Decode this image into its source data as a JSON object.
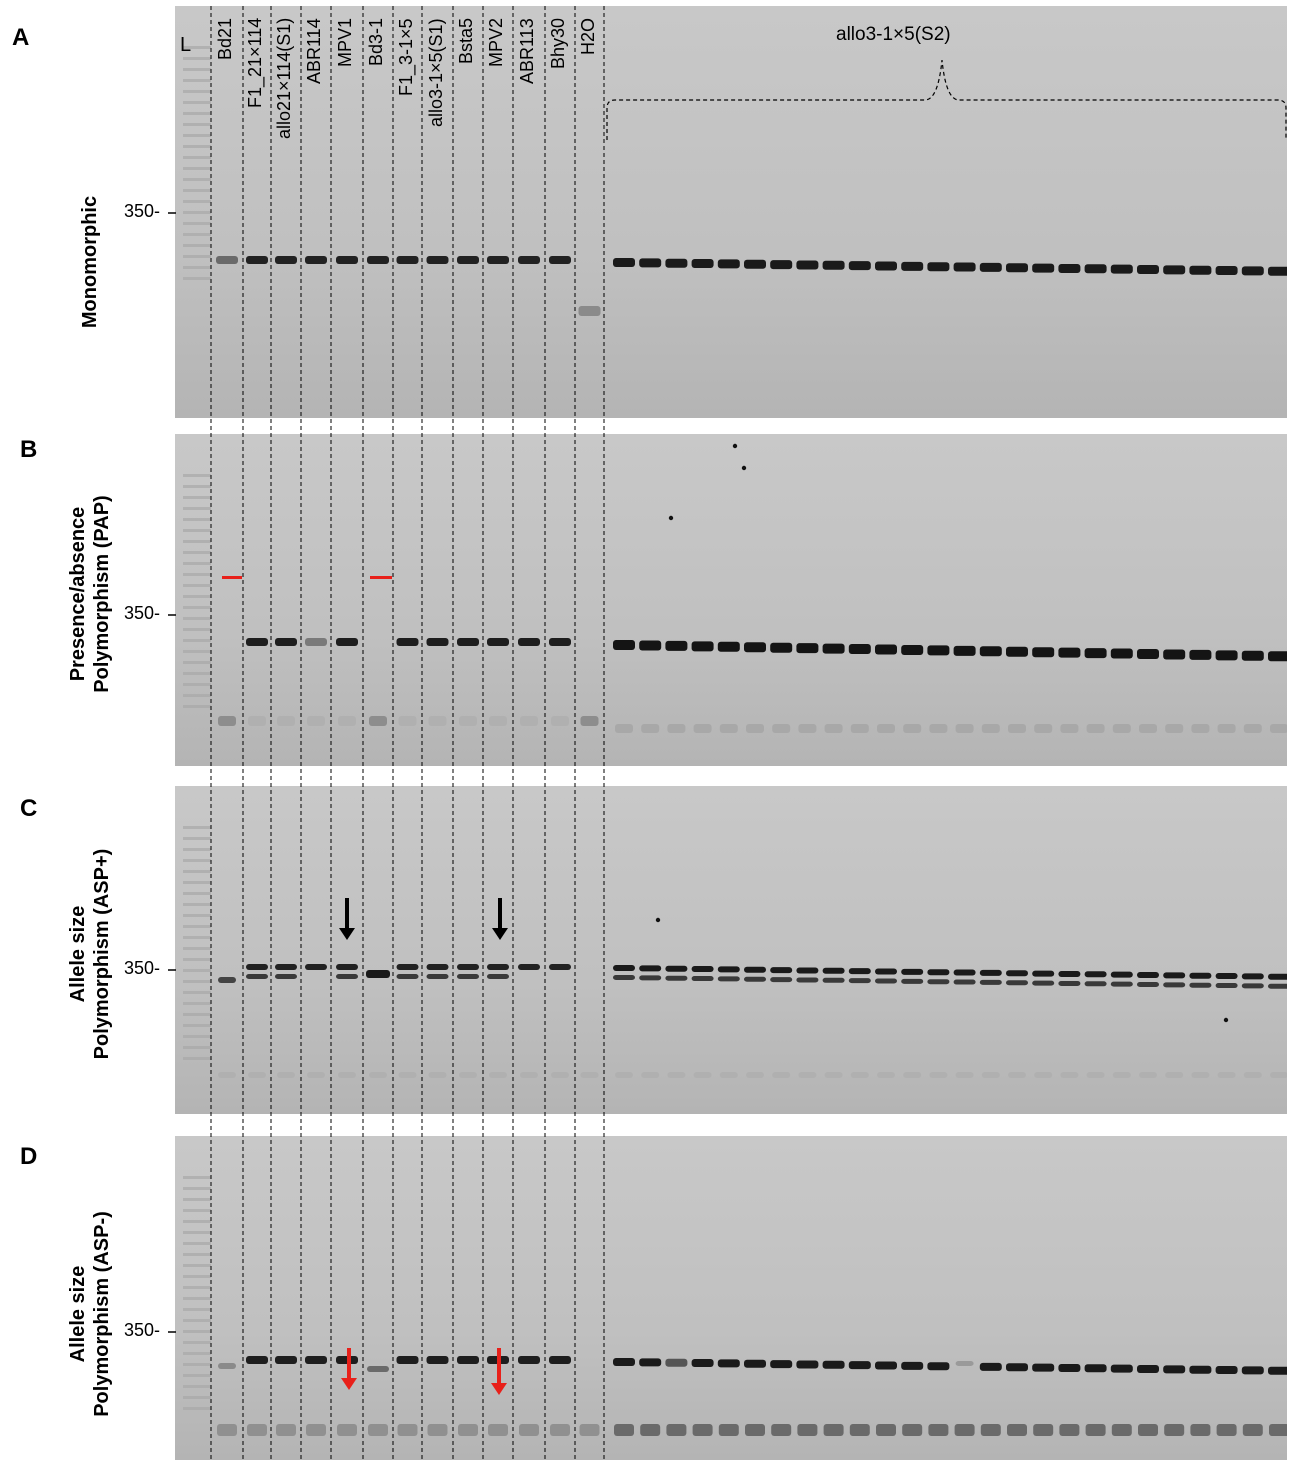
{
  "panels": [
    {
      "letter": "A",
      "title_line1": "",
      "title_line2": "Monomorphic",
      "size": "350-"
    },
    {
      "letter": "B",
      "title_line1": "Presence/absence",
      "title_line2": "Polymorphism (PAP)",
      "size": "350-"
    },
    {
      "letter": "C",
      "title_line1": "Allele size",
      "title_line2": "Polymorphism (ASP+)",
      "size": "350-"
    },
    {
      "letter": "D",
      "title_line1": "Allele size",
      "title_line2": "Polymorphism (ASP-)",
      "size": "350-"
    }
  ],
  "ladder_label": "L",
  "lanes": [
    "Bd21",
    "F1_21×114",
    "allo21×114(S1)",
    "ABR114",
    "MPV1",
    "Bd3-1",
    "F1_3-1×5",
    "allo3-1×5(S1)",
    "Bsta5",
    "MPV2",
    "ABR113",
    "Bhy30",
    "H2O"
  ],
  "group_label": "allo3-1×5(S2)",
  "marker_colors": {
    "dash": "#e8201a",
    "arrow_black": "#000000",
    "arrow_red": "#e8201a"
  }
}
